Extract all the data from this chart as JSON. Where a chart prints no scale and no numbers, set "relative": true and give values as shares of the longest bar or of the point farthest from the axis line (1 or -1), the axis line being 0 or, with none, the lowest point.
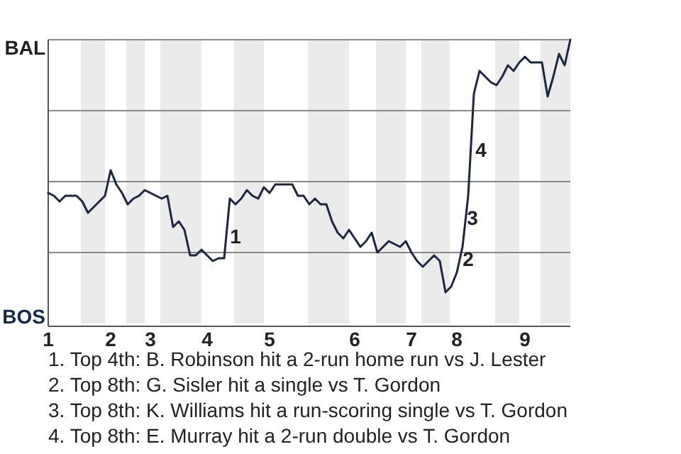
{
  "chart_data": {
    "type": "line",
    "relative": true,
    "categories": [
      "1",
      null,
      null,
      null,
      null,
      null,
      null,
      null,
      null,
      null,
      null,
      "2",
      null,
      null,
      null,
      null,
      null,
      null,
      "3",
      null,
      null,
      null,
      null,
      null,
      null,
      null,
      null,
      null,
      "4",
      null,
      null,
      null,
      null,
      null,
      null,
      null,
      null,
      null,
      null,
      "5",
      null,
      null,
      null,
      null,
      null,
      null,
      null,
      null,
      null,
      null,
      null,
      null,
      null,
      null,
      "6",
      null,
      null,
      null,
      null,
      null,
      null,
      null,
      null,
      null,
      "7",
      null,
      null,
      null,
      null,
      null,
      null,
      null,
      "8",
      null,
      null,
      null,
      null,
      null,
      null,
      null,
      null,
      null,
      null,
      null,
      "9",
      null,
      null,
      null,
      null,
      null,
      null,
      null,
      null
    ],
    "series": [
      {
        "color": "#1c2640",
        "values": [
          0.46,
          0.45,
          0.43,
          0.45,
          0.45,
          0.45,
          0.43,
          0.39,
          0.41,
          0.43,
          0.45,
          0.54,
          0.49,
          0.46,
          0.42,
          0.44,
          0.45,
          0.47,
          0.46,
          0.45,
          0.44,
          0.45,
          0.34,
          0.36,
          0.33,
          0.24,
          0.24,
          0.26,
          0.24,
          0.22,
          0.23,
          0.23,
          0.44,
          0.42,
          0.44,
          0.47,
          0.45,
          0.44,
          0.48,
          0.46,
          0.49,
          0.49,
          0.49,
          0.49,
          0.45,
          0.45,
          0.42,
          0.44,
          0.42,
          0.42,
          0.36,
          0.32,
          0.3,
          0.33,
          0.3,
          0.27,
          0.29,
          0.32,
          0.25,
          0.27,
          0.29,
          0.28,
          0.27,
          0.29,
          0.25,
          0.22,
          0.2,
          0.22,
          0.24,
          0.22,
          0.11,
          0.13,
          0.18,
          0.27,
          0.45,
          0.81,
          0.89,
          0.87,
          0.85,
          0.84,
          0.87,
          0.91,
          0.89,
          0.92,
          0.94,
          0.92,
          0.92,
          0.92,
          0.8,
          0.87,
          0.95,
          0.91,
          1
        ]
      }
    ],
    "grid": "y",
    "marker": "none",
    "line_style": "solid",
    "annotations": [
      "BAL",
      "BOS",
      "1",
      "2",
      "3",
      "4",
      "1. Top 4th: B. Robinson hit a 2-run home run vs J. Lester",
      "2. Top 8th: G. Sisler hit a single vs T. Gordon",
      "3. Top 8th: K. Williams hit a run-scoring single vs T. Gordon",
      "4. Top 8th: E. Murray hit a 2-run double vs T. Gordon"
    ]
  }
}
